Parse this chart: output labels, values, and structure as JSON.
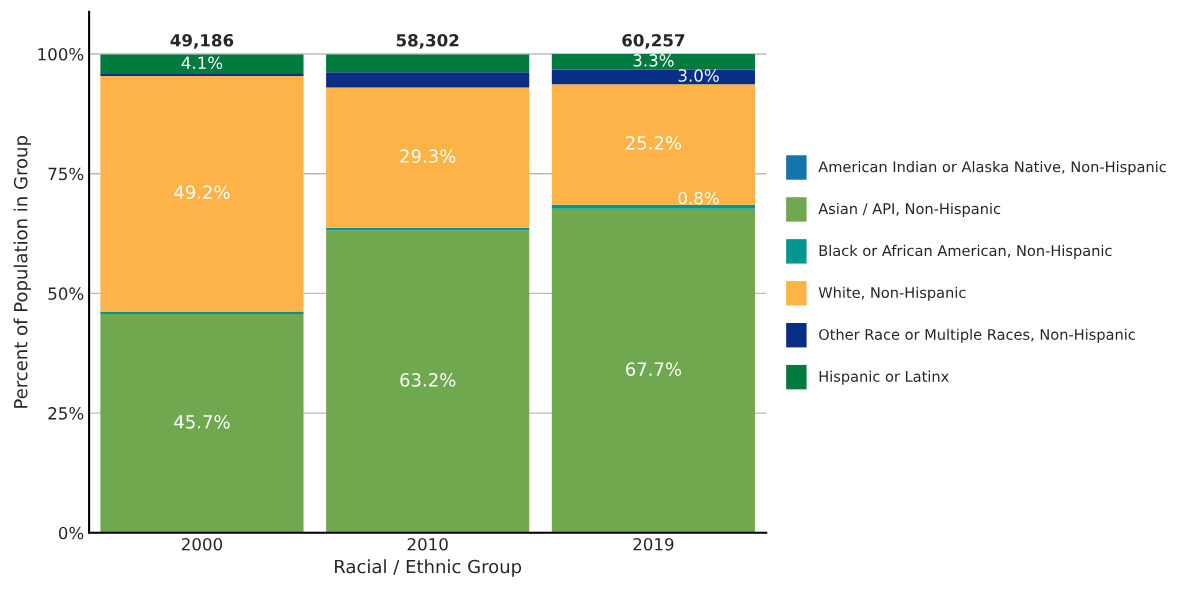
{
  "chart_data": {
    "type": "bar",
    "stacked": true,
    "xlabel": "Racial / Ethnic Group",
    "ylabel": "Percent of Population in Group",
    "categories": [
      "2000",
      "2010",
      "2019"
    ],
    "series": [
      {
        "name": "American Indian or Alaska Native, Non-Hispanic",
        "color": "#1474ad",
        "values": [
          null,
          null,
          null
        ],
        "value_labels": [
          null,
          null,
          null
        ]
      },
      {
        "name": "Asian / API, Non-Hispanic",
        "color": "#70a84f",
        "values": [
          45.7,
          63.2,
          67.7
        ],
        "value_labels": [
          "45.7%",
          "63.2%",
          "67.7%"
        ]
      },
      {
        "name": "Black or African American, Non-Hispanic",
        "color": "#00968f",
        "values": [
          0.5,
          0.5,
          0.8
        ],
        "value_labels": [
          null,
          null,
          "0.8%"
        ]
      },
      {
        "name": "White, Non-Hispanic",
        "color": "#fdb347",
        "values": [
          49.2,
          29.3,
          25.2
        ],
        "value_labels": [
          "49.2%",
          "29.3%",
          "25.2%"
        ]
      },
      {
        "name": "Other Race or Multiple Races, Non-Hispanic",
        "color": "#0a2d87",
        "values": [
          0.4,
          3.2,
          3.0
        ],
        "value_labels": [
          null,
          null,
          "3.0%"
        ]
      },
      {
        "name": "Hispanic or Latinx",
        "color": "#007a3d",
        "values": [
          4.1,
          3.7,
          3.3
        ],
        "value_labels": [
          "4.1%",
          null,
          "3.3%"
        ]
      }
    ],
    "annotations": [
      {
        "text": "49,186",
        "x": "2000",
        "y": 100
      },
      {
        "text": "58,302",
        "x": "2010",
        "y": 100
      },
      {
        "text": "60,257",
        "x": "2019",
        "y": 100
      }
    ],
    "ylim": [
      0,
      108.8
    ],
    "yticks": [
      {
        "value": 0,
        "label": "0%"
      },
      {
        "value": 25,
        "label": "25%"
      },
      {
        "value": 50,
        "label": "50%"
      },
      {
        "value": 75,
        "label": "75%"
      },
      {
        "value": 100,
        "label": "100%"
      }
    ],
    "grid": "y",
    "legend": "right"
  }
}
